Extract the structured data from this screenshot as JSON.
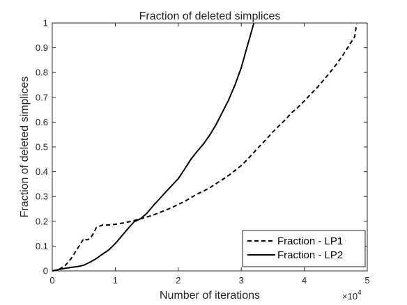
{
  "chart_data": {
    "type": "line",
    "title": "Fraction of deleted simplices",
    "xlabel": "Number of iterations",
    "ylabel": "Fraction of deleted simplices",
    "x_multiplier": "×10",
    "x_multiplier_exp": "4",
    "xlim": [
      0,
      5
    ],
    "ylim": [
      0,
      1
    ],
    "xticks": [
      0,
      1,
      2,
      3,
      4,
      5
    ],
    "yticks": [
      0,
      0.1,
      0.2,
      0.3,
      0.4,
      0.5,
      0.6,
      0.7,
      0.8,
      0.9,
      1
    ],
    "xtick_labels": [
      "0",
      "1",
      "2",
      "3",
      "4",
      "5"
    ],
    "ytick_labels": [
      "0",
      "0.1",
      "0.2",
      "0.3",
      "0.4",
      "0.5",
      "0.6",
      "0.7",
      "0.8",
      "0.9",
      "1"
    ],
    "grid": false,
    "legend_position": "bottom-right",
    "series": [
      {
        "name": "Fraction - LP1",
        "style": "dashed",
        "color": "#000000",
        "x": [
          0,
          0.1,
          0.2,
          0.3,
          0.4,
          0.5,
          0.55,
          0.6,
          0.65,
          0.7,
          0.75,
          0.8,
          0.85,
          0.9,
          1.0,
          1.1,
          1.2,
          1.3,
          1.4,
          1.5,
          1.6,
          1.7,
          1.8,
          1.9,
          2.0,
          2.1,
          2.2,
          2.3,
          2.4,
          2.5,
          2.6,
          2.7,
          2.8,
          2.9,
          3.0,
          3.1,
          3.2,
          3.3,
          3.4,
          3.5,
          3.6,
          3.7,
          3.8,
          3.9,
          4.0,
          4.1,
          4.2,
          4.3,
          4.4,
          4.5,
          4.6,
          4.7,
          4.8,
          4.83
        ],
        "y": [
          0,
          0.005,
          0.02,
          0.05,
          0.09,
          0.13,
          0.125,
          0.13,
          0.15,
          0.175,
          0.18,
          0.185,
          0.185,
          0.185,
          0.188,
          0.192,
          0.197,
          0.203,
          0.21,
          0.217,
          0.225,
          0.235,
          0.245,
          0.256,
          0.268,
          0.28,
          0.295,
          0.31,
          0.322,
          0.335,
          0.352,
          0.368,
          0.385,
          0.405,
          0.425,
          0.45,
          0.478,
          0.505,
          0.532,
          0.56,
          0.585,
          0.61,
          0.638,
          0.66,
          0.685,
          0.712,
          0.738,
          0.768,
          0.798,
          0.83,
          0.865,
          0.905,
          0.945,
          0.995
        ]
      },
      {
        "name": "Fraction - LP2",
        "style": "solid",
        "color": "#000000",
        "x": [
          0,
          0.2,
          0.3,
          0.4,
          0.5,
          0.6,
          0.7,
          0.8,
          0.9,
          1.0,
          1.1,
          1.2,
          1.3,
          1.4,
          1.5,
          1.6,
          1.7,
          1.8,
          1.9,
          2.0,
          2.1,
          2.2,
          2.3,
          2.4,
          2.5,
          2.6,
          2.7,
          2.8,
          2.9,
          3.0,
          3.05,
          3.1,
          3.15,
          3.2
        ],
        "y": [
          0,
          0.01,
          0.014,
          0.017,
          0.023,
          0.035,
          0.05,
          0.068,
          0.085,
          0.11,
          0.14,
          0.17,
          0.198,
          0.21,
          0.232,
          0.262,
          0.29,
          0.318,
          0.345,
          0.372,
          0.41,
          0.45,
          0.482,
          0.512,
          0.548,
          0.59,
          0.64,
          0.69,
          0.75,
          0.82,
          0.865,
          0.91,
          0.955,
          1.0
        ]
      }
    ]
  }
}
